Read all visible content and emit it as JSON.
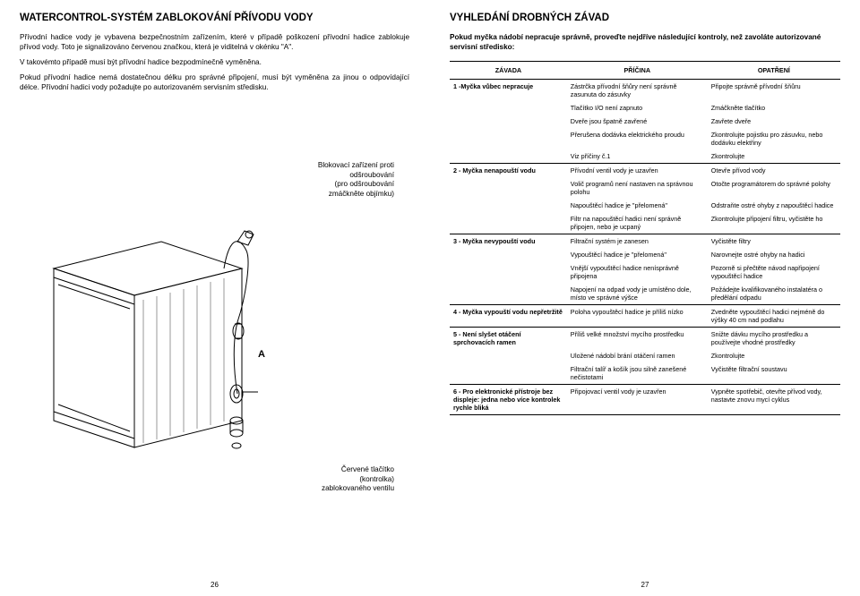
{
  "left": {
    "title": "WATERCONTROL-SYSTÉM ZABLOKOVÁNÍ PŘÍVODU VODY",
    "p1": "Přívodní hadice vody je vybavena bezpečnostním zařízením, které v případě poškození přívodní hadice zablokuje přívod vody. Toto je signalizováno červenou značkou, která je viditelná v okénku \"A\".",
    "p2": "V takovémto případě musí být přívodní hadice bezpodmínečně vyměněna.",
    "p3": "Pokud přívodní hadice nemá dostatečnou délku pro správné připojení, musí být vyměněna za jinou o odpovídající délce. Přívodní hadici vody požadujte po autorizovaném servisním středisku.",
    "caption_right_l1": "Blokovací zařízení proti",
    "caption_right_l2": "odšroubování",
    "caption_right_l3": "(pro odšroubování",
    "caption_right_l4": "zmáčkněte objímku)",
    "label_a": "A",
    "caption_bottom_l1": "Červené tlačítko",
    "caption_bottom_l2": "(kontrolka)",
    "caption_bottom_l3": "zablokovaného ventilu",
    "pagenum": "26"
  },
  "right": {
    "title": "VYHLEDÁNÍ DROBNÝCH ZÁVAD",
    "intro": "Pokud myčka nádobí nepracuje správně, proveďte nejdříve následující kontroly, než zavoláte autorizované servisní středisko:",
    "th1": "ZÁVADA",
    "th2": "PŘÍČINA",
    "th3": "OPATŘENÍ",
    "rows": [
      {
        "fault": "1 -Myčka vůbec nepracuje",
        "cause": "Zástrčka přívodní šňůry není správně zasunuta do zásuvky",
        "remedy": "Připojte správně přívodní šňůru"
      },
      {
        "fault": "",
        "cause": "Tlačítko I/O není zapnuto",
        "remedy": "Zmáčkněte tlačítko"
      },
      {
        "fault": "",
        "cause": "Dveře jsou špatně zavřené",
        "remedy": "Zavřete dveře"
      },
      {
        "fault": "",
        "cause": "Přerušena dodávka elektrického proudu",
        "remedy": "Zkontrolujte pojistku pro zásuvku, nebo dodávku elektřiny"
      },
      {
        "fault": "",
        "cause": "Viz příčiny č.1",
        "remedy": "Zkontrolujte"
      },
      {
        "fault": "2 -  Myčka nenapouští vodu",
        "cause": "Přívodní ventil vody je uzavřen",
        "remedy": "Otevře přívod vody"
      },
      {
        "fault": "",
        "cause": "Volič programů není nastaven na správnou polohu",
        "remedy": "Otočte programátorem do správné polohy"
      },
      {
        "fault": "",
        "cause": "Napouštěcí hadice je \"přelomená\"",
        "remedy": "Odstraňte ostré ohyby z napouštěcí hadice"
      },
      {
        "fault": "",
        "cause": "Filtr na napouštěcí hadici není správně připojen, nebo je ucpaný",
        "remedy": "Zkontrolujte připojení filtru, vyčistěte ho"
      },
      {
        "fault": "3 -  Myčka nevypouští vodu",
        "cause": "Filtrační systém je zanesen",
        "remedy": "Vyčistěte filtry"
      },
      {
        "fault": "",
        "cause": "Vypouštěcí hadice je \"přelomená\"",
        "remedy": "Narovnejte ostré ohyby na hadici"
      },
      {
        "fault": "",
        "cause": "Vnější vypouštěcí hadice nenísprávně připojena",
        "remedy": "Pozorně si přečtěte návod napřipojení vypouštěcí hadice"
      },
      {
        "fault": "",
        "cause": "Napojení na odpad vody je umístěno dole, místo ve správné výšce",
        "remedy": "Požádejte kvalifikovaného instalatéra o předělání odpadu"
      },
      {
        "fault": "4 -  Myčka vypouští vodu nepřetržitě",
        "cause": "Poloha vypouštěcí hadice je příliš nízko",
        "remedy": "Zvedněte vypouštěcí hadici nejméně do výšky 40 cm nad podlahu"
      },
      {
        "fault": "5 -  Není slyšet otáčení sprchovacích ramen",
        "cause": "Příliš velké množství mycího prostředku",
        "remedy": "Snižte dávku mycího prostředku a používejte vhodné prostředky"
      },
      {
        "fault": "",
        "cause": "Uložené nádobí brání otáčení ramen",
        "remedy": "Zkontrolujte"
      },
      {
        "fault": "",
        "cause": "Filtrační talíř a košík jsou silně zanešené nečistotami",
        "remedy": "Vyčistěte filtrační soustavu"
      },
      {
        "fault": "6 -  Pro elektronické přístroje bez displeje: jedna nebo více kontrolek rychle bliká",
        "cause": "Připojovací ventil vody je uzavřen",
        "remedy": "Vypněte spotřebič, otevřte přívod vody, nastavte znovu mycí cyklus"
      }
    ],
    "pagenum": "27"
  },
  "style": {
    "bg": "#ffffff",
    "text": "#000000",
    "line": "#000000",
    "header_fontsize": 11.5,
    "body_fontsize": 8.2,
    "table_fontsize": 7.2
  }
}
